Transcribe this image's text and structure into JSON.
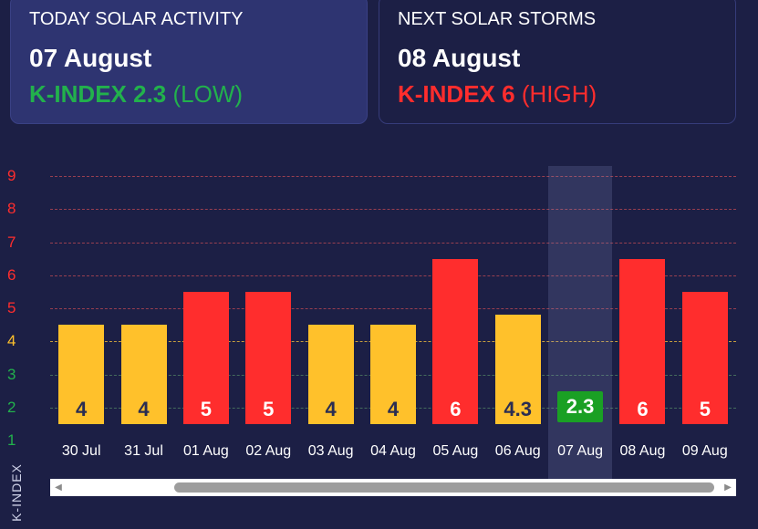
{
  "today": {
    "heading": "TODAY SOLAR ACTIVITY",
    "date": "07 August",
    "kindex_label": "K-INDEX 2.3",
    "level": "(LOW)",
    "color": "#22b14c"
  },
  "next": {
    "heading": "NEXT SOLAR STORMS",
    "date": "08 August",
    "kindex_label": "K-INDEX 6",
    "level": "(HIGH)",
    "color": "#ff2d2d"
  },
  "chart_data": {
    "type": "bar",
    "ylabel": "K-INDEX",
    "ylim": [
      1,
      9
    ],
    "yticks": [
      {
        "value": 9,
        "label": "9",
        "color": "#ff2d2d"
      },
      {
        "value": 8,
        "label": "8",
        "color": "#ff2d2d"
      },
      {
        "value": 7,
        "label": "7",
        "color": "#ff2d2d"
      },
      {
        "value": 6,
        "label": "6",
        "color": "#ff2d2d"
      },
      {
        "value": 5,
        "label": "5",
        "color": "#ff2d2d"
      },
      {
        "value": 4,
        "label": "4",
        "color": "#ffc12b"
      },
      {
        "value": 3,
        "label": "3",
        "color": "#22b14c"
      },
      {
        "value": 2,
        "label": "2",
        "color": "#22b14c"
      },
      {
        "value": 1,
        "label": "1",
        "color": "#22b14c"
      }
    ],
    "grid": true,
    "highlighted_category": "07 Aug",
    "categories": [
      "30 Jul",
      "31 Jul",
      "01 Aug",
      "02 Aug",
      "03 Aug",
      "04 Aug",
      "05 Aug",
      "06 Aug",
      "07 Aug",
      "08 Aug",
      "09 Aug"
    ],
    "values": [
      4,
      4,
      5,
      5,
      4,
      4,
      6,
      4.3,
      2.3,
      6,
      5
    ],
    "value_labels": [
      "4",
      "4",
      "5",
      "5",
      "4",
      "4",
      "6",
      "4.3",
      "2.3",
      "6",
      "5"
    ],
    "colors": {
      "moderate": "#ffc12b",
      "high": "#ff2d2d",
      "low": "#1aa024"
    }
  },
  "scrollbar": {
    "left_arrow_icon": "triangle-left-icon",
    "right_arrow_icon": "triangle-right-icon"
  }
}
